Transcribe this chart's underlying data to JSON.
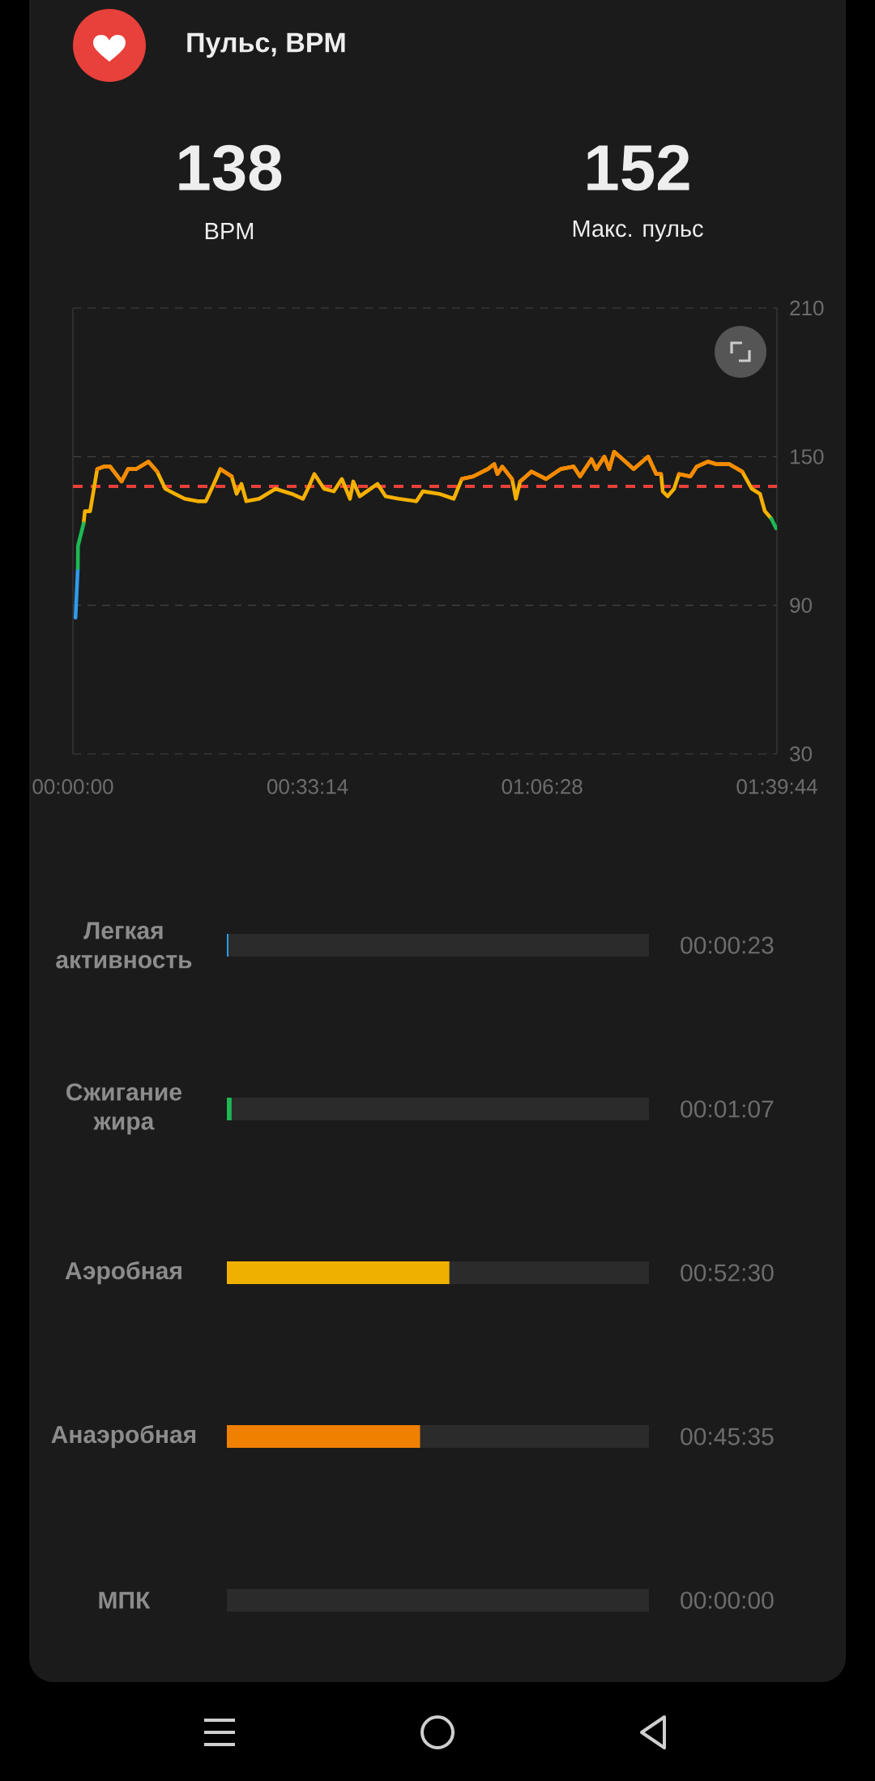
{
  "chart_data": [
    {
      "type": "line",
      "title": "Пульс, BPM",
      "annotations": [
        "138",
        "BPM",
        "152",
        "Макс. пульс"
      ],
      "x": [
        0.0252,
        0.0283,
        0.0406,
        0.0574,
        0.0727,
        0.088,
        0.1148,
        0.1301,
        0.1492,
        0.1783,
        0.1989,
        0.2181,
        0.241,
        0.264,
        0.2946,
        0.3137,
        0.3328,
        0.3481,
        0.3749,
        0.3864,
        0.3979,
        0.4093,
        0.4399,
        0.4782,
        0.5165,
        0.5433,
        0.5547,
        0.57,
        0.593,
        0.6159,
        0.635,
        0.6542,
        0.6618,
        0.6771,
        0.7192,
        0.7383,
        0.7689,
        0.811,
        0.8263,
        0.8646,
        0.899,
        0.9181,
        0.9449,
        0.9794,
        0.9947,
        1.0023,
        1.0138,
        1.0367,
        1.0459,
        1.0559,
        1.0826,
        1.1171,
        1.1515,
        1.1821,
        1.1974,
        1.2242,
        1.2357,
        1.2548,
        1.2663,
        1.2778,
        1.3045,
        1.3236,
        1.3581,
        1.3772,
        1.3887,
        1.3925,
        1.404,
        1.4193,
        1.4308,
        1.4576,
        1.4729,
        1.4996,
        1.5188,
        1.5494,
        1.58,
        1.6029,
        1.6221,
        1.6336,
        1.6489
      ],
      "xlim": [
        0,
        1.6622
      ],
      "xticks": [
        {
          "value": 0,
          "label": "00:00:00"
        },
        {
          "value": 0.5539,
          "label": "00:33:14"
        },
        {
          "value": 1.1078,
          "label": "01:06:28"
        },
        {
          "value": 1.6622,
          "label": "01:39:44"
        }
      ],
      "ylim": [
        30,
        210
      ],
      "yticks": [
        30,
        90,
        150,
        210
      ],
      "grid": "y",
      "ref_lines": [
        {
          "axis": "y",
          "value": 138,
          "color": "#e8403a",
          "line_style": "dashed"
        }
      ],
      "series": [
        {
          "color": "#f5b000",
          "values": [
            123,
            128,
            128,
            145,
            146,
            146,
            140,
            145,
            145,
            148,
            144,
            137,
            135,
            133,
            132,
            132,
            139,
            145,
            142,
            135,
            139,
            132,
            133,
            137,
            135,
            133,
            137,
            143,
            137,
            136,
            141,
            133,
            140,
            134,
            139,
            134,
            133,
            132,
            136,
            135,
            133,
            141,
            142,
            145,
            147,
            143,
            146,
            141,
            133,
            140,
            144,
            141,
            145,
            146,
            142,
            149,
            145,
            150,
            145,
            152,
            148,
            145,
            150,
            143,
            143,
            136,
            134,
            137,
            143,
            142,
            146,
            148,
            147,
            147,
            144,
            137,
            135,
            128,
            125
          ]
        },
        {
          "color": "#f58a00",
          "values": [
            null,
            null,
            null,
            145,
            146,
            146,
            140,
            145,
            145,
            148,
            144,
            null,
            null,
            null,
            null,
            null,
            null,
            145,
            142,
            null,
            null,
            null,
            null,
            null,
            null,
            null,
            null,
            null,
            null,
            null,
            null,
            null,
            null,
            null,
            null,
            null,
            null,
            null,
            null,
            null,
            null,
            141,
            142,
            145,
            147,
            143,
            146,
            141,
            null,
            140,
            144,
            141,
            145,
            146,
            142,
            149,
            145,
            150,
            145,
            152,
            148,
            145,
            150,
            143,
            143,
            null,
            null,
            null,
            143,
            142,
            146,
            148,
            147,
            147,
            144,
            null,
            null,
            null,
            null
          ]
        },
        {
          "color": "#2f9bea",
          "x": [
            0.0061,
            0.0115
          ],
          "values": [
            85,
            105
          ]
        },
        {
          "color": "#1db954",
          "x": [
            0.0115,
            0.012,
            0.0252
          ],
          "values": [
            105,
            114,
            123
          ]
        },
        {
          "color": "#1db954",
          "x": [
            1.6489,
            1.6604
          ],
          "values": [
            125,
            121
          ]
        }
      ]
    },
    {
      "type": "bar",
      "orientation": "horizontal",
      "categories": [
        "Легкая активность",
        "Сжигание жира",
        "Аэробная",
        "Анаэробная",
        "МПК"
      ],
      "values": [
        23,
        67,
        3150,
        2735,
        0
      ],
      "value_labels": [
        "00:00:23",
        "00:01:07",
        "00:52:30",
        "00:45:35",
        "00:00:00"
      ],
      "colors": [
        "#2f9bea",
        "#1db954",
        "#f0b000",
        "#f08000",
        "#e8403a"
      ]
    }
  ]
}
